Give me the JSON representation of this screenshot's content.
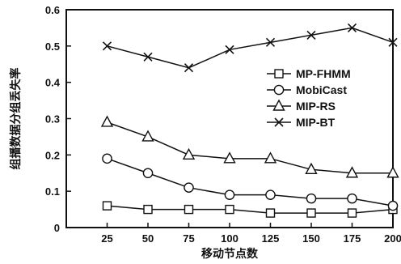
{
  "chart_data": {
    "type": "line",
    "title": "",
    "xlabel": "移动节点数",
    "ylabel": "组播数据分组丢失率",
    "x": [
      25,
      50,
      75,
      100,
      125,
      150,
      175,
      200
    ],
    "xlim": [
      0,
      200
    ],
    "ylim": [
      0,
      0.6
    ],
    "xticks": [
      "25",
      "50",
      "75",
      "100",
      "125",
      "150",
      "175",
      "200"
    ],
    "yticks": [
      "0",
      "0.1",
      "0.2",
      "0.3",
      "0.4",
      "0.5",
      "0.6"
    ],
    "grid": false,
    "legend_position": "right",
    "series": [
      {
        "name": "MP-FHMM",
        "marker": "square",
        "values": [
          0.06,
          0.05,
          0.05,
          0.05,
          0.04,
          0.04,
          0.04,
          0.05
        ]
      },
      {
        "name": "MobiCast",
        "marker": "circle",
        "values": [
          0.19,
          0.15,
          0.11,
          0.09,
          0.09,
          0.08,
          0.08,
          0.06
        ]
      },
      {
        "name": "MIP-RS",
        "marker": "triangle",
        "values": [
          0.29,
          0.25,
          0.2,
          0.19,
          0.19,
          0.16,
          0.15,
          0.15
        ]
      },
      {
        "name": "MIP-BT",
        "marker": "x",
        "values": [
          0.5,
          0.47,
          0.44,
          0.49,
          0.51,
          0.53,
          0.55,
          0.51
        ]
      }
    ],
    "colors": {
      "line": "#111111",
      "marker_fill": "#ffffff"
    }
  }
}
